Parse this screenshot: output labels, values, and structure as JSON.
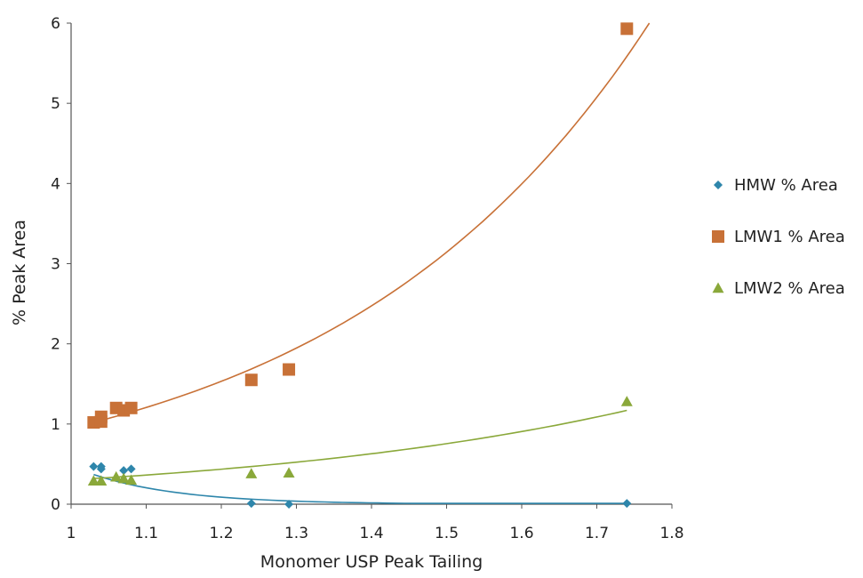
{
  "chart_data": {
    "type": "scatter",
    "title": "",
    "xlabel": "Monomer USP Peak Tailing",
    "ylabel": "% Peak Area",
    "xlim": [
      1,
      1.8
    ],
    "ylim": [
      0,
      6
    ],
    "xticks": [
      "1",
      "1.1",
      "1.2",
      "1.3",
      "1.4",
      "1.5",
      "1.6",
      "1.7",
      "1.8"
    ],
    "yticks": [
      "0",
      "1",
      "2",
      "3",
      "4",
      "5",
      "6"
    ],
    "grid": false,
    "legend_position": "right",
    "series": [
      {
        "name": "HMW % Area",
        "marker": "diamond",
        "color": "#2e86ab",
        "x": [
          1.03,
          1.04,
          1.04,
          1.07,
          1.08,
          1.24,
          1.29,
          1.74
        ],
        "y": [
          0.47,
          0.47,
          0.44,
          0.42,
          0.44,
          0.01,
          0.0,
          0.01
        ],
        "trendline": {
          "x_start": 1.03,
          "x_end": 1.74,
          "y_start": 0.37,
          "y_end": 0.0
        }
      },
      {
        "name": "LMW1 % Area",
        "marker": "square",
        "color": "#c87137",
        "x": [
          1.03,
          1.04,
          1.04,
          1.06,
          1.07,
          1.08,
          1.24,
          1.29,
          1.74
        ],
        "y": [
          1.02,
          1.09,
          1.03,
          1.2,
          1.17,
          1.2,
          1.55,
          1.68,
          5.93
        ],
        "trendline": {
          "x_start": 1.03,
          "x_end": 1.77,
          "y_start": 1.02,
          "y_end": 6.0
        }
      },
      {
        "name": "LMW2 % Area",
        "marker": "triangle",
        "color": "#8aa83a",
        "x": [
          1.03,
          1.04,
          1.06,
          1.07,
          1.08,
          1.24,
          1.29,
          1.74
        ],
        "y": [
          0.29,
          0.29,
          0.34,
          0.32,
          0.3,
          0.38,
          0.39,
          1.28
        ],
        "trendline": {
          "x_start": 1.03,
          "x_end": 1.74,
          "y_start": 0.32,
          "y_end": 1.17
        }
      }
    ]
  }
}
